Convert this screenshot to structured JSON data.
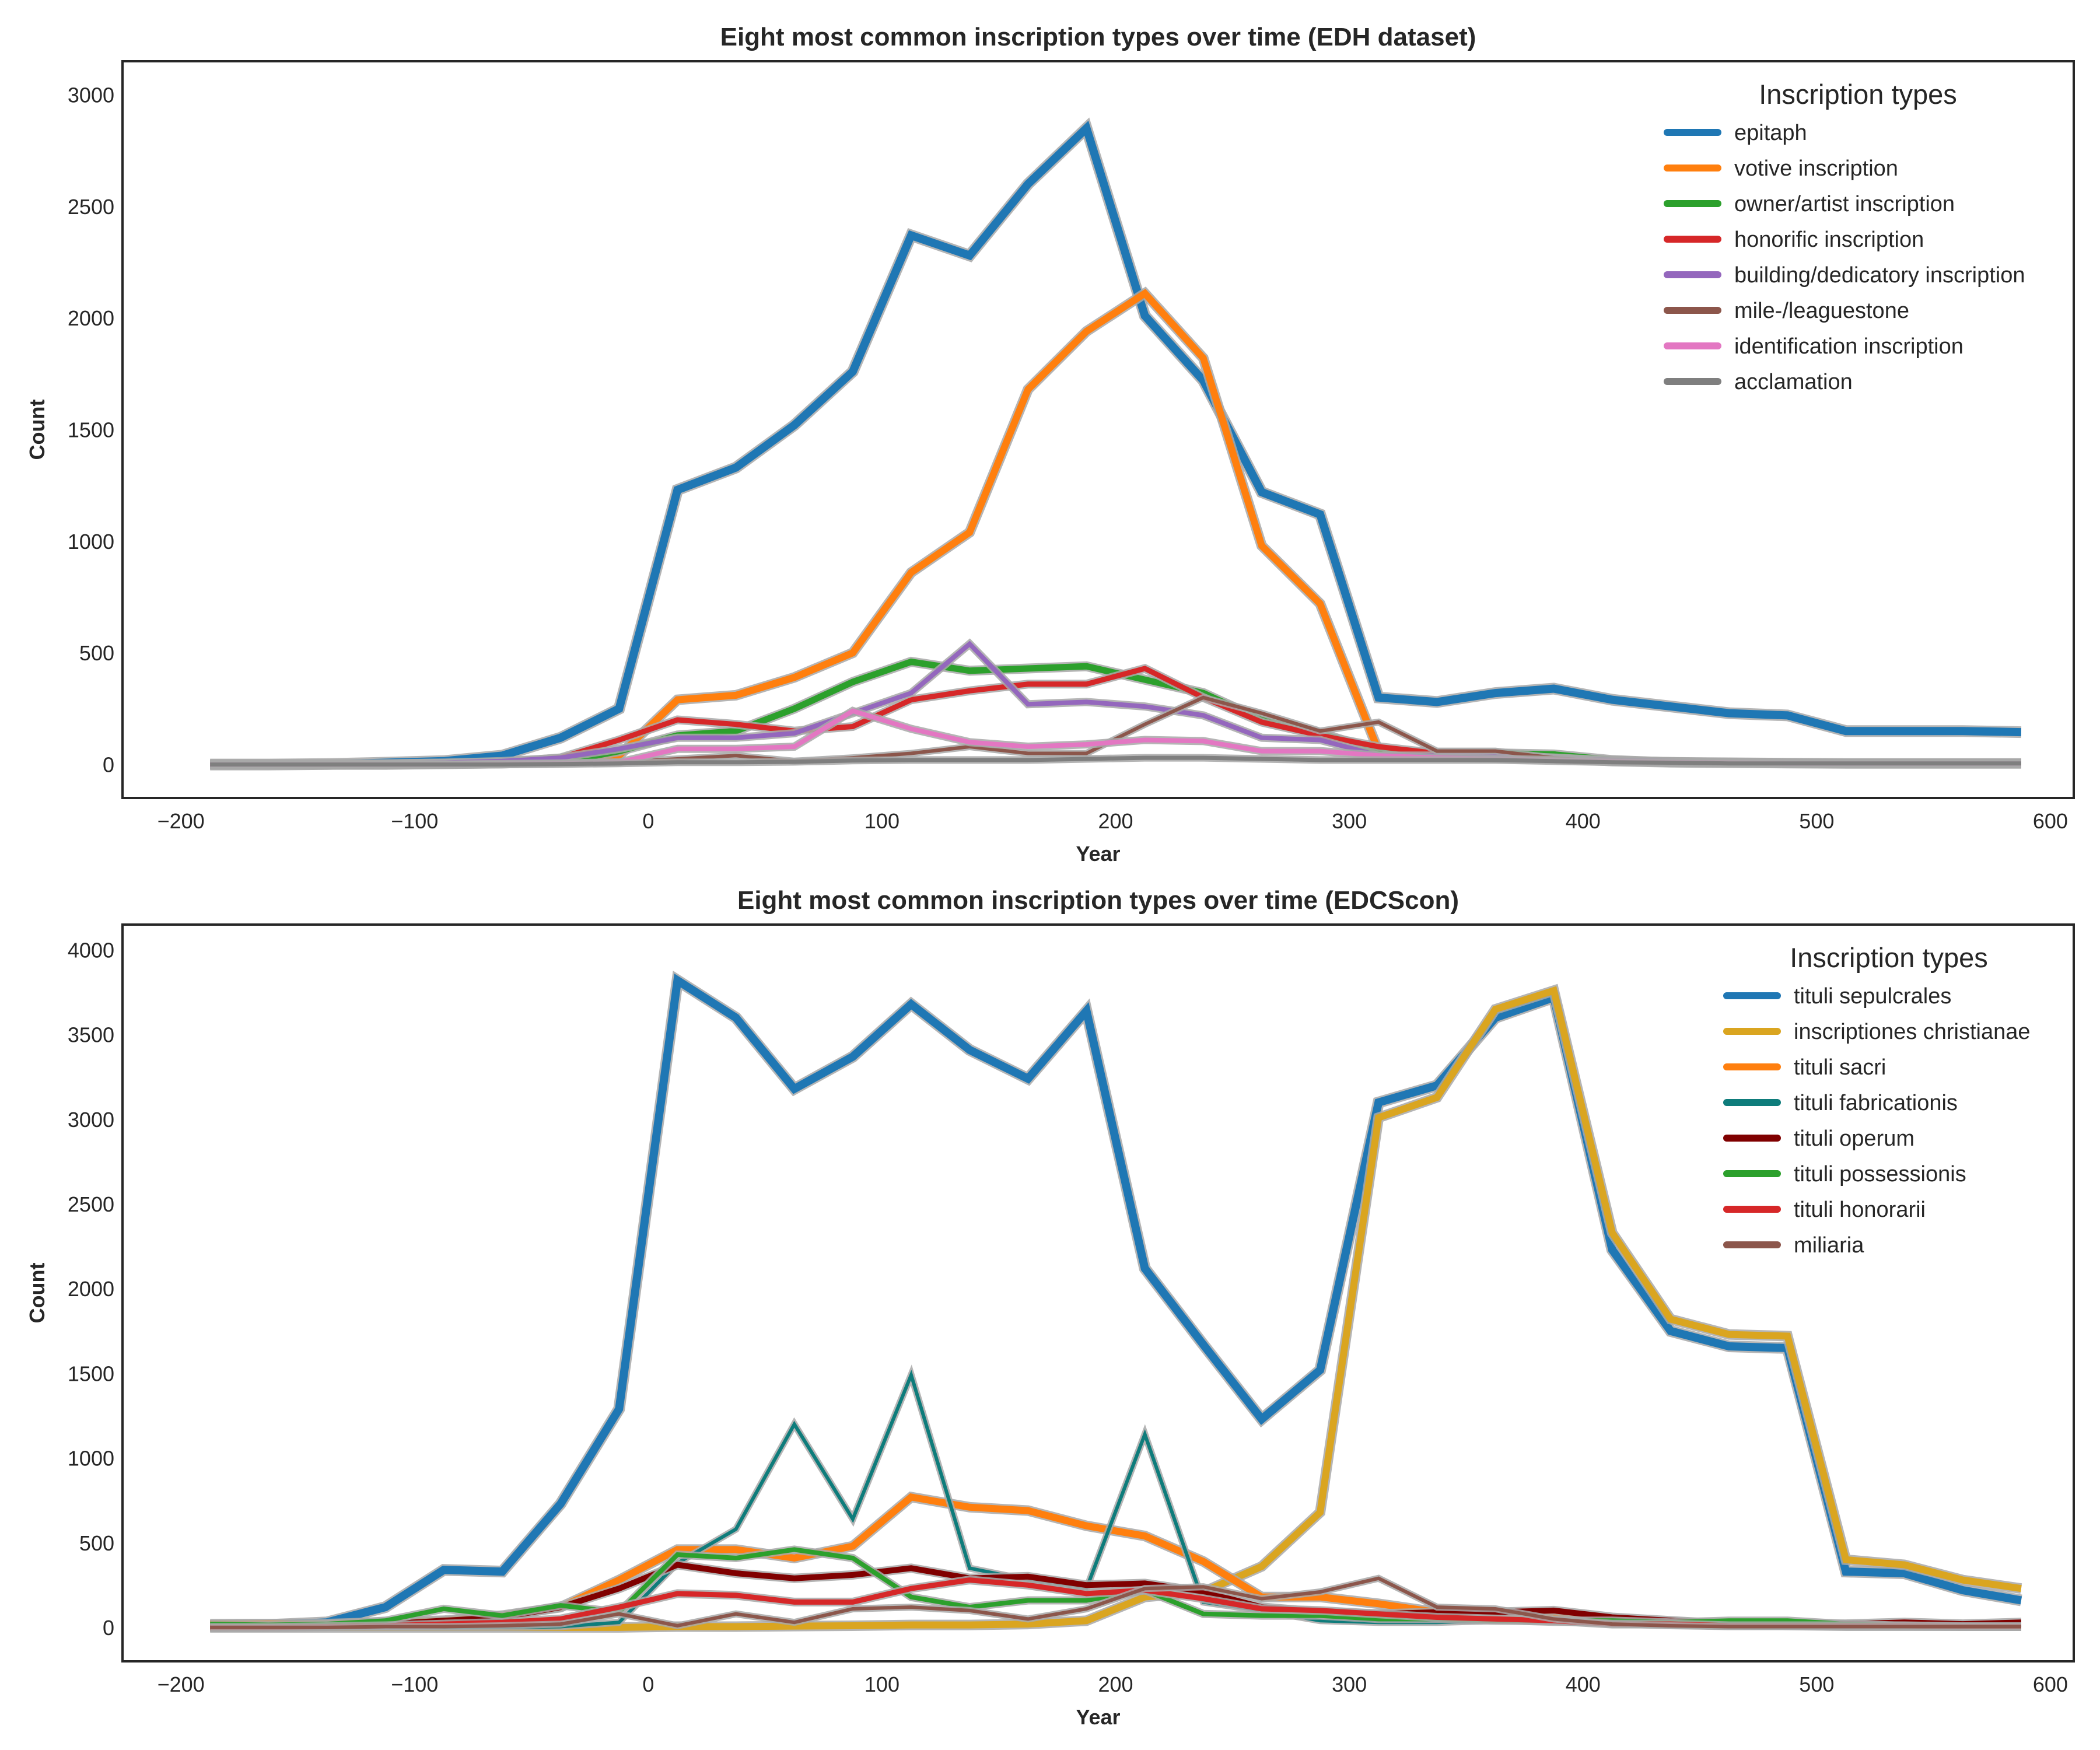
{
  "charts": [
    {
      "type": "area",
      "title": "Eight most common inscription types over time (EDH dataset)",
      "xlabel": "Year",
      "ylabel": "Count",
      "xlim": [
        -225,
        610
      ],
      "ylim": [
        -150,
        3150
      ],
      "xticks": [
        -200,
        -100,
        0,
        100,
        200,
        300,
        400,
        500,
        600
      ],
      "xtick_labels": [
        "−200",
        "−100",
        "0",
        "100",
        "200",
        "300",
        "400",
        "500",
        "600"
      ],
      "yticks": [
        0,
        500,
        1000,
        1500,
        2000,
        2500,
        3000
      ],
      "ytick_labels": [
        "0",
        "500",
        "1000",
        "1500",
        "2000",
        "2500",
        "3000"
      ],
      "grid": false,
      "legend": {
        "title": "Inscription types",
        "placement": "top-right"
      },
      "x": [
        -187.5,
        -162.5,
        -137.5,
        -112.5,
        -87.5,
        -62.5,
        -37.5,
        -12.5,
        12.5,
        37.5,
        62.5,
        87.5,
        112.5,
        137.5,
        162.5,
        187.5,
        212.5,
        237.5,
        262.5,
        287.5,
        312.5,
        337.5,
        362.5,
        387.5,
        412.5,
        437.5,
        462.5,
        487.5,
        512.5,
        537.5,
        562.5,
        587.5
      ],
      "series": [
        {
          "name": "epitaph",
          "color": "#1f77b4",
          "width": 14,
          "values": [
            0,
            0,
            2,
            8,
            15,
            40,
            120,
            250,
            1230,
            1330,
            1520,
            1760,
            2370,
            2280,
            2600,
            2850,
            2010,
            1720,
            1220,
            1120,
            300,
            280,
            320,
            340,
            290,
            260,
            230,
            220,
            150,
            150,
            150,
            145
          ]
        },
        {
          "name": "votive inscription",
          "color": "#ff7f0e",
          "width": 12,
          "values": [
            0,
            0,
            0,
            0,
            3,
            6,
            12,
            40,
            290,
            310,
            390,
            500,
            860,
            1040,
            1680,
            1940,
            2110,
            1820,
            980,
            720,
            60,
            40,
            40,
            30,
            15,
            10,
            8,
            6,
            5,
            5,
            5,
            5
          ]
        },
        {
          "name": "owner/artist inscription",
          "color": "#2ca02c",
          "width": 11,
          "values": [
            0,
            0,
            0,
            0,
            2,
            5,
            10,
            60,
            130,
            150,
            250,
            370,
            460,
            420,
            430,
            440,
            380,
            320,
            200,
            140,
            60,
            50,
            50,
            45,
            20,
            10,
            8,
            6,
            5,
            5,
            5,
            5
          ]
        },
        {
          "name": "honorific inscription",
          "color": "#d62728",
          "width": 9,
          "values": [
            0,
            0,
            0,
            2,
            5,
            10,
            30,
            110,
            200,
            180,
            150,
            170,
            290,
            330,
            360,
            360,
            430,
            300,
            190,
            130,
            80,
            50,
            40,
            30,
            15,
            10,
            8,
            6,
            5,
            5,
            5,
            5
          ]
        },
        {
          "name": "building/dedicatory inscription",
          "color": "#9467bd",
          "width": 8,
          "values": [
            0,
            0,
            2,
            5,
            8,
            15,
            30,
            70,
            120,
            120,
            140,
            230,
            320,
            540,
            270,
            280,
            260,
            220,
            120,
            110,
            40,
            40,
            40,
            30,
            20,
            15,
            10,
            8,
            5,
            5,
            5,
            5
          ]
        },
        {
          "name": "mile-/leaguestone",
          "color": "#8c564b",
          "width": 6,
          "values": [
            0,
            0,
            0,
            0,
            0,
            2,
            5,
            10,
            25,
            40,
            15,
            30,
            50,
            80,
            50,
            50,
            180,
            300,
            230,
            150,
            190,
            60,
            60,
            30,
            10,
            8,
            5,
            5,
            5,
            5,
            5,
            5
          ]
        },
        {
          "name": "identification inscription",
          "color": "#e377c2",
          "width": 8,
          "values": [
            0,
            0,
            0,
            0,
            0,
            2,
            5,
            10,
            70,
            70,
            80,
            240,
            160,
            100,
            80,
            90,
            110,
            105,
            60,
            60,
            40,
            30,
            25,
            20,
            15,
            10,
            8,
            5,
            5,
            5,
            5,
            5
          ]
        },
        {
          "name": "acclamation",
          "color": "#7f7f7f",
          "width": 7,
          "values": [
            0,
            0,
            0,
            0,
            0,
            0,
            2,
            5,
            10,
            10,
            12,
            18,
            20,
            20,
            20,
            25,
            30,
            30,
            25,
            20,
            20,
            20,
            20,
            15,
            10,
            8,
            5,
            5,
            5,
            5,
            5,
            5
          ]
        }
      ]
    },
    {
      "type": "area",
      "title": "Eight most common inscription types over time (EDCScon)",
      "xlabel": "Year",
      "ylabel": "Count",
      "xlim": [
        -225,
        610
      ],
      "ylim": [
        -200,
        4150
      ],
      "xticks": [
        -200,
        -100,
        0,
        100,
        200,
        300,
        400,
        500,
        600
      ],
      "xtick_labels": [
        "−200",
        "−100",
        "0",
        "100",
        "200",
        "300",
        "400",
        "500",
        "600"
      ],
      "yticks": [
        0,
        500,
        1000,
        1500,
        2000,
        2500,
        3000,
        3500,
        4000
      ],
      "ytick_labels": [
        "0",
        "500",
        "1000",
        "1500",
        "2000",
        "2500",
        "3000",
        "3500",
        "4000"
      ],
      "grid": false,
      "legend": {
        "title": "Inscription types",
        "placement": "top-right"
      },
      "x": [
        -187.5,
        -162.5,
        -137.5,
        -112.5,
        -87.5,
        -62.5,
        -37.5,
        -12.5,
        12.5,
        37.5,
        62.5,
        87.5,
        112.5,
        137.5,
        162.5,
        187.5,
        212.5,
        237.5,
        262.5,
        287.5,
        312.5,
        337.5,
        362.5,
        387.5,
        412.5,
        437.5,
        462.5,
        487.5,
        512.5,
        537.5,
        562.5,
        587.5
      ],
      "series": [
        {
          "name": "tituli sepulcrales",
          "color": "#1f77b4",
          "width": 14,
          "values": [
            10,
            15,
            30,
            120,
            340,
            330,
            730,
            1290,
            3820,
            3600,
            3180,
            3370,
            3680,
            3410,
            3240,
            3640,
            2120,
            1670,
            1230,
            1520,
            3100,
            3200,
            3600,
            3720,
            2230,
            1750,
            1660,
            1650,
            330,
            320,
            220,
            160
          ]
        },
        {
          "name": "inscriptiones christianae",
          "color": "#daa520",
          "width": 12,
          "values": [
            0,
            0,
            0,
            0,
            0,
            0,
            0,
            0,
            5,
            5,
            8,
            10,
            15,
            15,
            20,
            40,
            180,
            210,
            360,
            680,
            3010,
            3130,
            3650,
            3760,
            2330,
            1820,
            1730,
            1720,
            400,
            370,
            280,
            230
          ]
        },
        {
          "name": "tituli sacri",
          "color": "#ff7f0e",
          "width": 12,
          "values": [
            20,
            20,
            20,
            30,
            40,
            70,
            120,
            280,
            460,
            460,
            410,
            480,
            770,
            710,
            690,
            600,
            540,
            390,
            180,
            180,
            140,
            90,
            70,
            60,
            40,
            30,
            20,
            15,
            10,
            10,
            10,
            10
          ]
        },
        {
          "name": "tituli fabricationis",
          "color": "#0e7c7b",
          "width": 6,
          "values": [
            0,
            0,
            0,
            0,
            0,
            0,
            5,
            30,
            380,
            580,
            1200,
            640,
            1490,
            350,
            280,
            230,
            1140,
            150,
            100,
            40,
            30,
            30,
            40,
            30,
            30,
            20,
            20,
            15,
            10,
            10,
            5,
            5
          ]
        },
        {
          "name": "tituli operum",
          "color": "#800000",
          "width": 10,
          "values": [
            0,
            5,
            10,
            20,
            40,
            60,
            120,
            230,
            370,
            320,
            290,
            310,
            350,
            290,
            300,
            250,
            260,
            210,
            120,
            90,
            80,
            90,
            90,
            100,
            60,
            40,
            20,
            20,
            20,
            30,
            20,
            30
          ]
        },
        {
          "name": "tituli possessionis",
          "color": "#2ca02c",
          "width": 8,
          "values": [
            20,
            15,
            20,
            40,
            110,
            70,
            130,
            90,
            430,
            410,
            460,
            410,
            180,
            120,
            160,
            160,
            220,
            80,
            70,
            70,
            50,
            50,
            40,
            40,
            40,
            30,
            40,
            40,
            20,
            10,
            5,
            5
          ]
        },
        {
          "name": "tituli honorarii",
          "color": "#d62728",
          "width": 9,
          "values": [
            0,
            0,
            5,
            10,
            20,
            30,
            50,
            120,
            200,
            190,
            150,
            150,
            230,
            280,
            250,
            200,
            220,
            170,
            110,
            100,
            80,
            60,
            50,
            40,
            20,
            20,
            10,
            10,
            10,
            10,
            5,
            5
          ]
        },
        {
          "name": "miliaria",
          "color": "#8c564b",
          "width": 6,
          "values": [
            0,
            0,
            0,
            5,
            5,
            10,
            20,
            80,
            10,
            80,
            30,
            110,
            120,
            100,
            50,
            110,
            230,
            240,
            170,
            210,
            290,
            120,
            110,
            50,
            20,
            10,
            5,
            5,
            5,
            5,
            5,
            5
          ]
        }
      ]
    }
  ]
}
